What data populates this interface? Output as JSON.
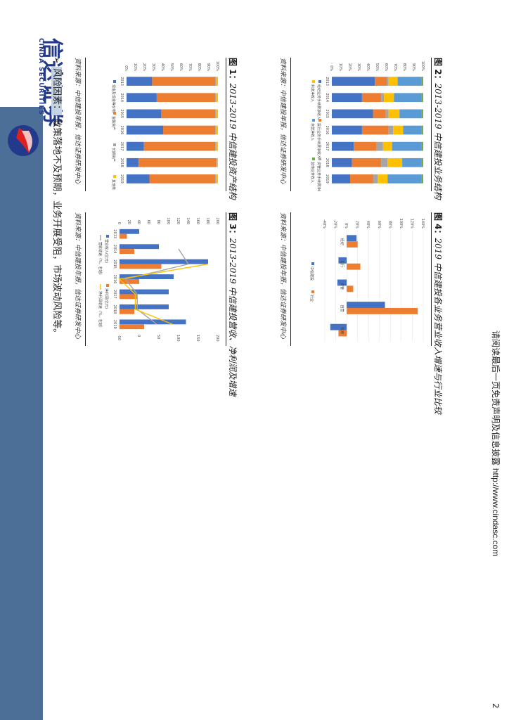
{
  "brand": {
    "name_cn": "信达证券",
    "name_en": "CINDA SECURITIES"
  },
  "page_number": "2",
  "footer": {
    "text": "请阅读最后一页免责声明及信息披露",
    "url": "http://www.cindasc.com"
  },
  "risk": {
    "bullet": "➢",
    "label": "风险因素：",
    "text": "政策落地不及预期，业务开展受阻，市场波动风险等。"
  },
  "colors": {
    "blue": "#4472c4",
    "orange": "#ed7d31",
    "gray": "#a5a5a5",
    "yellow": "#ffc000",
    "lightblue": "#5b9bd5",
    "green": "#70ad47",
    "band": "#4b6f96"
  },
  "charts": [
    {
      "prefix": "图 1：",
      "title": "2013-2019 中信建投资产结构",
      "source": "资料来源：中信建投年报，信达证券研发中心",
      "chart_data": {
        "type": "bar",
        "stacked": "percent",
        "categories": [
          "2013",
          "2014",
          "2015",
          "2016",
          "2017",
          "2018",
          "2019"
        ],
        "series": [
          {
            "name": "现金及现金等价物",
            "color": "#4472c4",
            "values": [
              28,
              33,
              38,
              40,
              19,
              13,
              25
            ]
          },
          {
            "name": "金融资产",
            "color": "#ed7d31",
            "values": [
              69,
              64,
              59,
              57,
              78,
              85,
              72
            ]
          },
          {
            "name": "长期资产",
            "color": "#a5a5a5",
            "values": [
              1,
              1,
              1,
              1,
              1,
              1,
              1
            ]
          },
          {
            "name": "其他类",
            "color": "#ffc000",
            "values": [
              2,
              2,
              2,
              2,
              2,
              1,
              2
            ]
          }
        ],
        "yticks": [
          "0%",
          "10%",
          "20%",
          "30%",
          "40%",
          "50%",
          "60%",
          "70%",
          "80%",
          "90%",
          "100%"
        ],
        "ylim": [
          0,
          100
        ]
      }
    },
    {
      "prefix": "图 2：",
      "title": "2013-2019 中信建投业务结构",
      "source": "资料来源：中信建投年报，信达证券研发中心",
      "chart_data": {
        "type": "bar",
        "stacked": "percent",
        "categories": [
          "2013",
          "2014",
          "2015",
          "2016",
          "2017",
          "2018",
          "2019"
        ],
        "series": [
          {
            "name": "经纪业务手续费净收入",
            "color": "#4472c4",
            "values": [
              47,
              33,
              45,
              33,
              24,
              22,
              20
            ]
          },
          {
            "name": "投行业务手续费净收入",
            "color": "#ed7d31",
            "values": [
              13,
              21,
              14,
              29,
              25,
              32,
              25
            ]
          },
          {
            "name": "资管业务手续费净收入",
            "color": "#a5a5a5",
            "values": [
              2,
              3,
              3,
              5,
              7,
              7,
              5
            ]
          },
          {
            "name": "利息净收入",
            "color": "#ffc000",
            "values": [
              10,
              11,
              12,
              11,
              10,
              16,
              11
            ]
          },
          {
            "name": "自营净收入",
            "color": "#5b9bd5",
            "values": [
              26,
              30,
              24,
              20,
              32,
              21,
              37
            ]
          },
          {
            "name": "其他业务收入",
            "color": "#70ad47",
            "values": [
              2,
              2,
              2,
              2,
              2,
              2,
              2
            ]
          }
        ],
        "yticks": [
          "0%",
          "10%",
          "20%",
          "30%",
          "40%",
          "50%",
          "60%",
          "70%",
          "80%",
          "90%",
          "100%"
        ],
        "ylim": [
          0,
          100
        ]
      }
    },
    {
      "prefix": "图 3：",
      "title": "2013-2019 中信建投营收、净利润及增速",
      "source": "资料来源：中信建投年报，信达证券研发中心",
      "chart_data": {
        "type": "bar",
        "categories": [
          "2013",
          "2014",
          "2015",
          "2016",
          "2017",
          "2018",
          "2019"
        ],
        "series": [
          {
            "name": "营业收入(亿元)",
            "axis": "left",
            "color": "#4472c4",
            "values": [
              40,
              80,
              180,
              110,
              100,
              100,
              135
            ]
          },
          {
            "name": "净利润(亿元)",
            "axis": "left",
            "color": "#ed7d31",
            "values": [
              15,
              30,
              85,
              40,
              35,
              30,
              50
            ]
          },
          {
            "name": "营收增速（%，右轴）",
            "axis": "right",
            "kind": "line",
            "color": "#a5a5a5",
            "values": [
              null,
              100,
              125,
              -35,
              -5,
              -5,
              45
            ]
          },
          {
            "name": "净利润增速（%，右轴）",
            "axis": "right",
            "kind": "line",
            "color": "#ffc000",
            "values": [
              null,
              null,
              175,
              -50,
              -10,
              -10,
              85
            ]
          }
        ],
        "yticks_left": [
          "0",
          "20",
          "40",
          "60",
          "80",
          "100",
          "120",
          "140",
          "160",
          "180",
          "200"
        ],
        "yticks_right": [
          "-50",
          "0",
          "50",
          "100",
          "150",
          "200"
        ],
        "ylim_left": [
          0,
          200
        ],
        "ylim_right": [
          -50,
          200
        ]
      }
    },
    {
      "prefix": "图 4：",
      "title": "2019 中信建投各业务营业收入增速与行业比较",
      "source": "资料来源：中信建投年报，信达证券研发中心",
      "chart_data": {
        "type": "bar",
        "categories": [
          "经纪",
          "投行",
          "资管",
          "自营",
          "信用"
        ],
        "series": [
          {
            "name": "中信建投",
            "color": "#4472c4",
            "values": [
              18,
              -15,
              -17,
              70,
              -30
            ]
          },
          {
            "name": "行业",
            "color": "#ed7d31",
            "values": [
              20,
              25,
              12,
              130,
              -15
            ]
          }
        ],
        "yticks": [
          "-40%",
          "-20%",
          "0%",
          "20%",
          "40%",
          "60%",
          "80%",
          "100%",
          "120%",
          "140%"
        ],
        "ylim": [
          -40,
          140
        ]
      }
    }
  ]
}
